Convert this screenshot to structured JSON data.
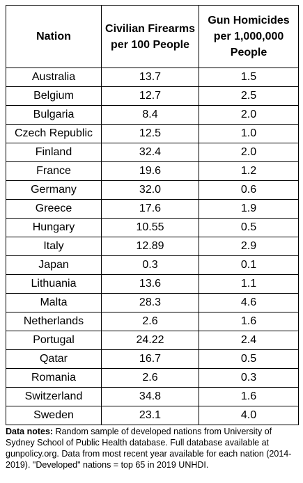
{
  "table": {
    "headers": {
      "nation": "Nation",
      "firearms": "Civilian Firearms per 100 People",
      "homicides": "Gun Homicides per 1,000,000 People"
    },
    "rows": [
      {
        "nation": "Australia",
        "firearms": "13.7",
        "homicides": "1.5"
      },
      {
        "nation": "Belgium",
        "firearms": "12.7",
        "homicides": "2.5"
      },
      {
        "nation": "Bulgaria",
        "firearms": "8.4",
        "homicides": "2.0"
      },
      {
        "nation": "Czech Republic",
        "firearms": "12.5",
        "homicides": "1.0"
      },
      {
        "nation": "Finland",
        "firearms": "32.4",
        "homicides": "2.0"
      },
      {
        "nation": "France",
        "firearms": "19.6",
        "homicides": "1.2"
      },
      {
        "nation": "Germany",
        "firearms": "32.0",
        "homicides": "0.6"
      },
      {
        "nation": "Greece",
        "firearms": "17.6",
        "homicides": "1.9"
      },
      {
        "nation": "Hungary",
        "firearms": "10.55",
        "homicides": "0.5"
      },
      {
        "nation": "Italy",
        "firearms": "12.89",
        "homicides": "2.9"
      },
      {
        "nation": "Japan",
        "firearms": "0.3",
        "homicides": "0.1"
      },
      {
        "nation": "Lithuania",
        "firearms": "13.6",
        "homicides": "1.1"
      },
      {
        "nation": "Malta",
        "firearms": "28.3",
        "homicides": "4.6"
      },
      {
        "nation": "Netherlands",
        "firearms": "2.6",
        "homicides": "1.6"
      },
      {
        "nation": "Portugal",
        "firearms": "24.22",
        "homicides": "2.4"
      },
      {
        "nation": "Qatar",
        "firearms": "16.7",
        "homicides": "0.5"
      },
      {
        "nation": "Romania",
        "firearms": "2.6",
        "homicides": "0.3"
      },
      {
        "nation": "Switzerland",
        "firearms": "34.8",
        "homicides": "1.6"
      },
      {
        "nation": "Sweden",
        "firearms": "23.1",
        "homicides": "4.0"
      }
    ]
  },
  "notes": {
    "label": "Data notes:",
    "text": " Random sample of developed nations from University of Sydney School of Public Health database. Full database available at gunpolicy.org. Data from most recent year available for each nation (2014-2019). \"Developed\" nations = top 65 in 2019 UNHDI."
  }
}
